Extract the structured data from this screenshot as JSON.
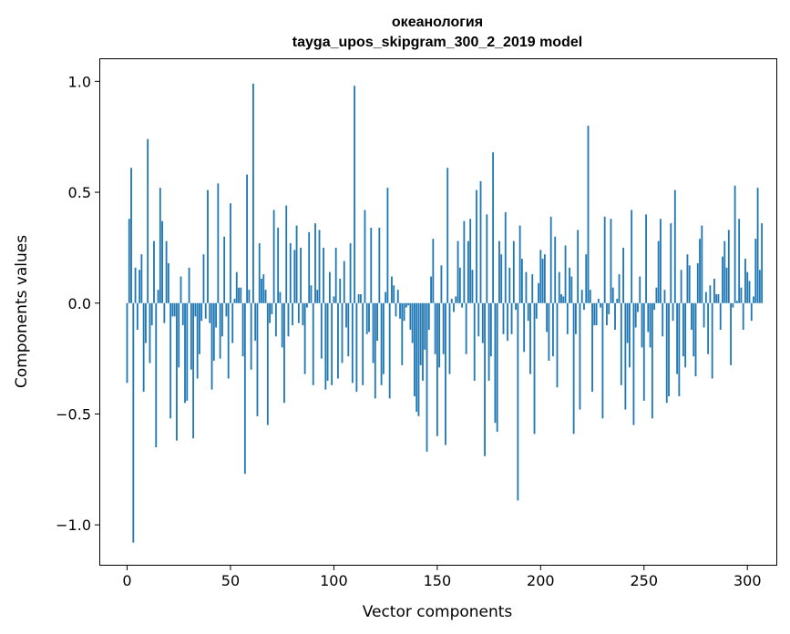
{
  "chart_data": {
    "type": "bar",
    "title": "океанология",
    "subtitle": "tayga_upos_skipgram_300_2_2019 model",
    "xlabel": "Vector components",
    "ylabel": "Components values",
    "xlim": [
      -13,
      314
    ],
    "ylim": [
      -1.18,
      1.1
    ],
    "xticks": [
      0,
      50,
      100,
      150,
      200,
      250,
      300
    ],
    "xtick_labels": [
      "0",
      "50",
      "100",
      "150",
      "200",
      "250",
      "300"
    ],
    "yticks": [
      1.0,
      0.5,
      0.0,
      -0.5,
      -1.0
    ],
    "ytick_labels": [
      "1.0",
      "0.5",
      "0.0",
      "−0.5",
      "−1.0"
    ],
    "bar_color": "#1f77b4",
    "values": [
      -0.36,
      0.38,
      0.61,
      -1.08,
      0.16,
      -0.12,
      0.15,
      0.22,
      -0.4,
      -0.18,
      0.74,
      -0.27,
      -0.1,
      0.28,
      -0.65,
      0.06,
      0.52,
      0.37,
      -0.09,
      0.28,
      0.18,
      -0.52,
      -0.06,
      -0.06,
      -0.62,
      -0.29,
      0.12,
      -0.1,
      -0.45,
      -0.44,
      0.16,
      -0.3,
      -0.61,
      -0.06,
      -0.34,
      -0.23,
      -0.08,
      0.22,
      -0.07,
      0.51,
      -0.09,
      -0.39,
      -0.26,
      -0.11,
      0.54,
      -0.25,
      -0.15,
      0.3,
      -0.06,
      -0.34,
      0.45,
      -0.18,
      0.02,
      0.14,
      0.07,
      0.07,
      -0.24,
      -0.77,
      0.58,
      0.06,
      -0.3,
      0.99,
      -0.17,
      -0.51,
      0.27,
      0.11,
      0.13,
      0.06,
      -0.55,
      -0.09,
      -0.05,
      0.42,
      -0.15,
      0.34,
      0.05,
      -0.2,
      -0.45,
      0.44,
      -0.15,
      0.27,
      -0.1,
      0.24,
      0.35,
      -0.09,
      0.25,
      -0.1,
      -0.32,
      -0.02,
      0.32,
      0.08,
      -0.37,
      0.36,
      0.06,
      0.33,
      -0.25,
      0.25,
      -0.39,
      -0.35,
      0.14,
      -0.37,
      0.03,
      0.25,
      -0.34,
      0.11,
      -0.27,
      0.19,
      -0.11,
      -0.24,
      0.27,
      -0.36,
      0.98,
      -0.4,
      0.04,
      0.04,
      -0.37,
      0.42,
      -0.14,
      -0.13,
      0.34,
      -0.27,
      -0.43,
      -0.17,
      0.34,
      -0.37,
      -0.32,
      0.05,
      0.52,
      -0.43,
      0.12,
      0.08,
      -0.06,
      0.06,
      -0.07,
      -0.28,
      -0.08,
      -0.02,
      -0.01,
      -0.12,
      -0.18,
      -0.42,
      -0.49,
      -0.51,
      -0.28,
      -0.35,
      -0.21,
      -0.67,
      -0.12,
      0.12,
      0.29,
      -0.23,
      -0.6,
      -0.29,
      0.17,
      -0.23,
      -0.64,
      0.61,
      -0.32,
      0.02,
      -0.04,
      0.03,
      0.28,
      0.16,
      -0.02,
      0.37,
      -0.23,
      0.28,
      0.38,
      0.15,
      -0.35,
      0.51,
      -0.15,
      0.55,
      -0.18,
      -0.69,
      0.4,
      -0.35,
      -0.24,
      0.68,
      -0.54,
      -0.58,
      0.28,
      0.22,
      -0.14,
      0.41,
      -0.17,
      0.16,
      -0.14,
      0.28,
      -0.03,
      -0.89,
      0.35,
      0.2,
      -0.22,
      0.14,
      -0.08,
      -0.32,
      0.13,
      -0.59,
      -0.07,
      0.09,
      0.24,
      0.2,
      0.22,
      -0.13,
      -0.26,
      0.39,
      -0.24,
      0.3,
      -0.38,
      0.14,
      0.04,
      0.03,
      0.26,
      -0.14,
      0.16,
      0.12,
      -0.59,
      -0.14,
      0.33,
      -0.48,
      0.06,
      -0.03,
      0.22,
      0.8,
      0.06,
      -0.4,
      -0.1,
      -0.1,
      0.02,
      -0.02,
      -0.52,
      0.39,
      -0.1,
      -0.05,
      0.38,
      0.07,
      -0.12,
      0.02,
      0.13,
      -0.37,
      0.25,
      -0.48,
      -0.18,
      -0.29,
      0.42,
      -0.55,
      -0.11,
      -0.04,
      0.12,
      -0.2,
      -0.44,
      0.4,
      -0.13,
      -0.2,
      -0.52,
      -0.03,
      0.07,
      0.28,
      0.38,
      -0.15,
      0.06,
      -0.45,
      -0.42,
      0.36,
      -0.08,
      0.51,
      -0.32,
      -0.42,
      0.15,
      -0.24,
      -0.29,
      0.22,
      0.17,
      -0.12,
      -0.24,
      -0.33,
      0.18,
      0.29,
      0.35,
      -0.11,
      0.05,
      -0.23,
      0.08,
      -0.34,
      0.11,
      0.04,
      0.04,
      -0.12,
      0.21,
      0.28,
      0.16,
      0.33,
      -0.28,
      -0.02,
      0.53,
      0.01,
      0.38,
      0.07,
      -0.12,
      0.2,
      0.14,
      0.1,
      -0.08,
      0.03,
      0.29,
      0.52,
      0.15,
      0.36
    ]
  }
}
